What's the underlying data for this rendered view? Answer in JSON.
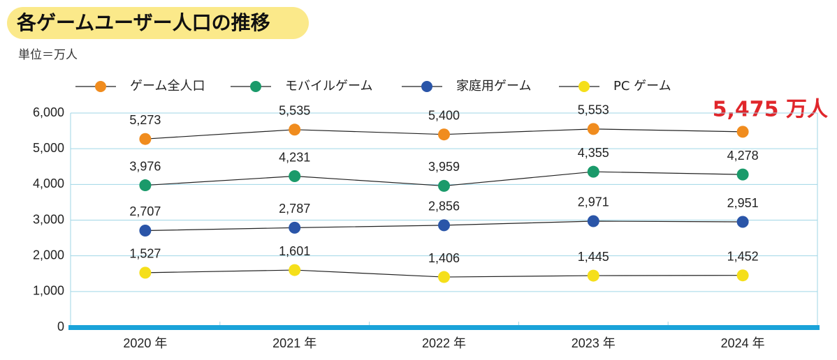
{
  "chart_data": {
    "type": "line",
    "title": "各ゲームユーザー人口の推移",
    "subtitle": "単位＝万人",
    "annotation": "5,475 万人",
    "categories": [
      "2020 年",
      "2021 年",
      "2022 年",
      "2023 年",
      "2024 年"
    ],
    "series": [
      {
        "name": "ゲーム全人口",
        "color": "#f08c1e",
        "values": [
          5273,
          5535,
          5400,
          5553,
          5475
        ],
        "value_labels": [
          "5,273",
          "5,535",
          "5,400",
          "5,553",
          null
        ]
      },
      {
        "name": "モバイルゲーム",
        "color": "#1a9a6a",
        "values": [
          3976,
          4231,
          3959,
          4355,
          4278
        ],
        "value_labels": [
          "3,976",
          "4,231",
          "3,959",
          "4,355",
          "4,278"
        ]
      },
      {
        "name": "家庭用ゲーム",
        "color": "#2a55a8",
        "values": [
          2707,
          2787,
          2856,
          2971,
          2951
        ],
        "value_labels": [
          "2,707",
          "2,787",
          "2,856",
          "2,971",
          "2,951"
        ]
      },
      {
        "name": "PC ゲーム",
        "color": "#f5df1a",
        "values": [
          1527,
          1601,
          1406,
          1445,
          1452
        ],
        "value_labels": [
          "1,527",
          "1,601",
          "1,406",
          "1,445",
          "1,452"
        ]
      }
    ],
    "ylim": [
      0,
      6000
    ],
    "yticks": [
      0,
      {
        "value": 1000,
        "label": "1,000"
      },
      {
        "value": 2000,
        "label": "2,000"
      },
      {
        "value": 3000,
        "label": "3,000"
      },
      {
        "value": 4000,
        "label": "4,000"
      },
      {
        "value": 5000,
        "label": "5,000"
      },
      {
        "value": 6000,
        "label": "6,000"
      }
    ],
    "grid": true
  }
}
